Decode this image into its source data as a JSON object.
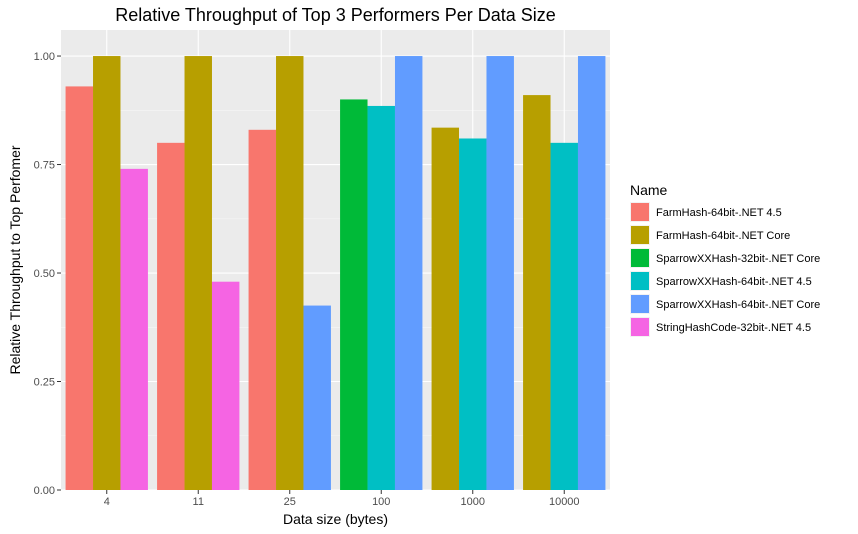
{
  "chart_data": {
    "type": "bar",
    "title": "Relative Throughput of Top 3 Performers Per Data Size",
    "xlabel": "Data size (bytes)",
    "ylabel": "Relative Throughput to Top Perfomer",
    "ylim": [
      0,
      1.06
    ],
    "yticks": [
      "0.00",
      "0.25",
      "0.50",
      "0.75",
      "1.00"
    ],
    "categories": [
      "4",
      "11",
      "25",
      "100",
      "1000",
      "10000"
    ],
    "grid": true,
    "legend_position": "right",
    "legend_title": "Name",
    "series": [
      {
        "name": "FarmHash-64bit-.NET 4.5",
        "color": "#F8766D",
        "values": [
          0.93,
          0.8,
          0.83,
          null,
          null,
          null
        ]
      },
      {
        "name": "FarmHash-64bit-.NET Core",
        "color": "#B79F00",
        "values": [
          1.0,
          1.0,
          1.0,
          null,
          0.835,
          0.91
        ]
      },
      {
        "name": "SparrowXXHash-32bit-.NET Core",
        "color": "#00BA38",
        "values": [
          null,
          null,
          null,
          0.9,
          null,
          null
        ]
      },
      {
        "name": "SparrowXXHash-64bit-.NET 4.5",
        "color": "#00BFC4",
        "values": [
          null,
          null,
          null,
          0.885,
          0.81,
          0.8
        ]
      },
      {
        "name": "SparrowXXHash-64bit-.NET Core",
        "color": "#619CFF",
        "values": [
          null,
          null,
          0.425,
          1.0,
          1.0,
          1.0
        ]
      },
      {
        "name": "StringHashCode-32bit-.NET 4.5",
        "color": "#F564E3",
        "values": [
          0.74,
          0.48,
          null,
          null,
          null,
          null
        ]
      }
    ]
  }
}
